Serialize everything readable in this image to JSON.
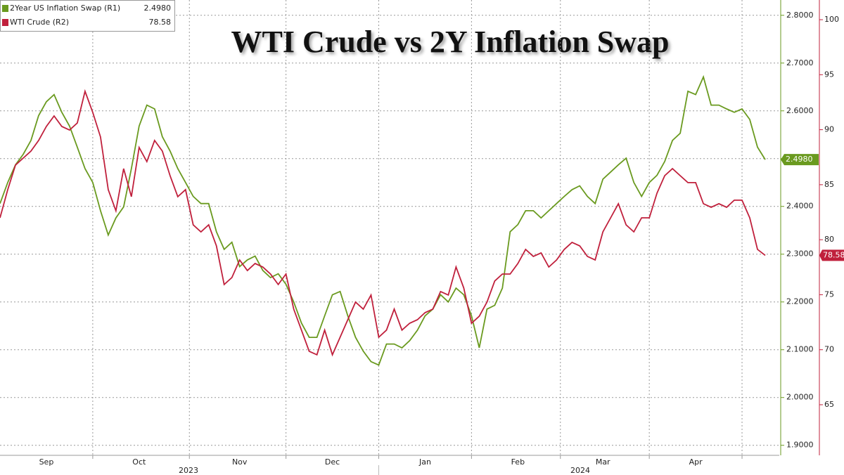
{
  "chart_data": {
    "type": "line",
    "title": "WTI Crude vs 2Y Inflation Swap",
    "categories": [
      null,
      null,
      null,
      null,
      null,
      null,
      "Sep",
      null,
      null,
      null,
      null,
      null,
      null,
      null,
      null,
      null,
      null,
      null,
      "Oct",
      null,
      null,
      null,
      null,
      null,
      null,
      null,
      null,
      null,
      null,
      null,
      null,
      "Nov",
      null,
      null,
      null,
      null,
      null,
      null,
      null,
      null,
      null,
      null,
      null,
      "Dec",
      null,
      null,
      null,
      null,
      null,
      null,
      null,
      null,
      null,
      null,
      null,
      "Jan",
      null,
      null,
      null,
      null,
      null,
      null,
      null,
      null,
      null,
      null,
      null,
      "Feb",
      null,
      null,
      null,
      null,
      null,
      null,
      null,
      null,
      null,
      null,
      "Mar",
      null,
      null,
      null,
      null,
      null,
      null,
      null,
      null,
      null,
      null,
      null,
      "Apr",
      null,
      null,
      null,
      null,
      null,
      null,
      null,
      null,
      null
    ],
    "year_labels": [
      "2023",
      "2024"
    ],
    "series": [
      {
        "name": "2Year US Inflation Swap (R1)",
        "color": "#6a9a1f",
        "axis": "y",
        "values": [
          2.406,
          2.45,
          2.487,
          2.509,
          2.538,
          2.59,
          2.619,
          2.634,
          2.597,
          2.568,
          2.524,
          2.479,
          2.45,
          2.391,
          2.34,
          2.376,
          2.399,
          2.479,
          2.568,
          2.612,
          2.604,
          2.546,
          2.516,
          2.479,
          2.45,
          2.421,
          2.406,
          2.406,
          2.347,
          2.31,
          2.325,
          2.274,
          2.288,
          2.296,
          2.266,
          2.251,
          2.259,
          2.237,
          2.2,
          2.156,
          2.126,
          2.126,
          2.171,
          2.215,
          2.222,
          2.171,
          2.126,
          2.097,
          2.075,
          2.068,
          2.112,
          2.112,
          2.104,
          2.119,
          2.141,
          2.171,
          2.185,
          2.215,
          2.2,
          2.229,
          2.215,
          2.171,
          2.104,
          2.185,
          2.193,
          2.229,
          2.347,
          2.362,
          2.391,
          2.391,
          2.376,
          2.391,
          2.406,
          2.421,
          2.435,
          2.443,
          2.421,
          2.406,
          2.457,
          2.472,
          2.487,
          2.501,
          2.45,
          2.421,
          2.45,
          2.465,
          2.494,
          2.538,
          2.553,
          2.641,
          2.634,
          2.671,
          2.612,
          2.612,
          2.604,
          2.597,
          2.604,
          2.582,
          2.524,
          2.498
        ],
        "value_labels": [
          null,
          null,
          null,
          null,
          null,
          null,
          null,
          null,
          null,
          null,
          null,
          null,
          null,
          null,
          null,
          null,
          null,
          null,
          null,
          null,
          null,
          null,
          null,
          null,
          null,
          null,
          null,
          null,
          null,
          null,
          null,
          null,
          null,
          null,
          null,
          null,
          null,
          null,
          null,
          null,
          null,
          null,
          null,
          null,
          null,
          null,
          null,
          null,
          null,
          null,
          null,
          null,
          null,
          null,
          null,
          null,
          null,
          null,
          null,
          null,
          null,
          null,
          null,
          null,
          null,
          null,
          null,
          null,
          null,
          null,
          null,
          null,
          null,
          null,
          null,
          null,
          null,
          null,
          null,
          null,
          null,
          null,
          null,
          null,
          null,
          null,
          null,
          null,
          null,
          null,
          null,
          null,
          null,
          null,
          null,
          null,
          null,
          null,
          null,
          "2.4980"
        ]
      },
      {
        "name": "WTI Crude (R2)",
        "color": "#c0203c",
        "axis": "y2",
        "values": [
          81.99,
          84.55,
          86.78,
          87.42,
          88.06,
          89.02,
          90.29,
          91.25,
          90.29,
          89.97,
          90.61,
          93.49,
          91.57,
          89.34,
          84.55,
          82.63,
          86.46,
          83.91,
          88.38,
          87.1,
          89.02,
          88.06,
          85.82,
          83.91,
          84.55,
          81.35,
          80.71,
          81.35,
          79.44,
          75.93,
          76.56,
          78.16,
          77.2,
          77.84,
          77.52,
          76.88,
          75.93,
          76.88,
          73.69,
          71.78,
          69.86,
          69.54,
          71.78,
          69.54,
          71.14,
          72.73,
          74.33,
          73.69,
          74.97,
          71.14,
          71.78,
          73.69,
          71.78,
          72.41,
          72.73,
          73.37,
          73.69,
          75.29,
          74.97,
          77.52,
          75.61,
          72.41,
          73.05,
          74.33,
          76.25,
          76.88,
          76.88,
          77.84,
          79.12,
          78.48,
          78.8,
          77.52,
          78.16,
          79.12,
          79.76,
          79.44,
          78.48,
          78.16,
          80.71,
          81.99,
          83.27,
          81.35,
          80.71,
          81.99,
          81.99,
          84.23,
          85.82,
          86.46,
          85.82,
          85.19,
          85.19,
          83.27,
          82.95,
          83.27,
          82.95,
          83.59,
          83.59,
          81.99,
          79.12,
          78.58
        ]
      }
    ],
    "ylim": [
      1.879,
      2.832
    ],
    "yticks": [
      {
        "value": 1.9,
        "label": "1.9000"
      },
      {
        "value": 2.0,
        "label": "2.0000"
      },
      {
        "value": 2.1,
        "label": "2.1000"
      },
      {
        "value": 2.2,
        "label": "2.2000"
      },
      {
        "value": 2.3,
        "label": "2.3000"
      },
      {
        "value": 2.4,
        "label": "2.4000"
      },
      {
        "value": 2.5,
        "label": "2.5000"
      },
      {
        "value": 2.6,
        "label": "2.6000"
      },
      {
        "value": 2.7,
        "label": "2.7000"
      },
      {
        "value": 2.8,
        "label": "2.8000"
      }
    ],
    "y2lim": [
      60.4,
      101.79
    ],
    "y2ticks": [
      65,
      70,
      75,
      80,
      85,
      90,
      95,
      100
    ],
    "grid": true,
    "legend": "top-left"
  }
}
